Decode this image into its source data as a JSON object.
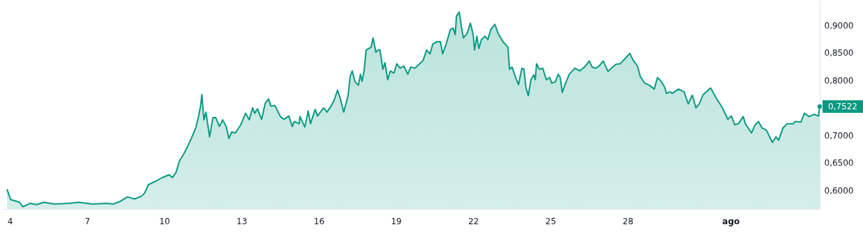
{
  "chart_data": {
    "type": "area",
    "xlim": [
      3.7,
      35.46
    ],
    "ylim": [
      0.566,
      0.946
    ],
    "xticks": [
      4,
      7,
      10,
      13,
      16,
      19,
      22,
      25,
      28,
      {
        "value": 32,
        "label": "ago"
      }
    ],
    "yticks": [
      {
        "value": 0.6,
        "label": "0,6000"
      },
      {
        "value": 0.65,
        "label": "0,6500"
      },
      {
        "value": 0.7,
        "label": "0,7000"
      },
      {
        "value": 0.8,
        "label": "0,8000"
      },
      {
        "value": 0.85,
        "label": "0,8500"
      },
      {
        "value": 0.9,
        "label": "0,9000"
      }
    ],
    "grid": false,
    "annotations": [
      {
        "text": "0,7522",
        "x": 35.46,
        "y": 0.7522
      }
    ],
    "series": [
      {
        "color": "#089981",
        "x": [
          3.89,
          4.03,
          4.38,
          4.51,
          4.78,
          5.05,
          5.32,
          5.73,
          6.27,
          6.68,
          7.22,
          7.76,
          8.03,
          8.3,
          8.57,
          8.84,
          9.11,
          9.24,
          9.38,
          9.65,
          9.92,
          10.19,
          10.32,
          10.46,
          10.59,
          10.78,
          10.95,
          11.05,
          11.22,
          11.32,
          11.41,
          11.46,
          11.54,
          11.62,
          11.76,
          11.89,
          12.0,
          12.14,
          12.27,
          12.41,
          12.51,
          12.62,
          12.76,
          12.97,
          13.16,
          13.3,
          13.43,
          13.51,
          13.62,
          13.78,
          13.92,
          14.05,
          14.14,
          14.3,
          14.51,
          14.65,
          14.84,
          14.97,
          15.05,
          15.24,
          15.27,
          15.46,
          15.59,
          15.68,
          15.86,
          15.95,
          16.19,
          16.32,
          16.49,
          16.59,
          16.73,
          16.84,
          16.97,
          17.14,
          17.22,
          17.3,
          17.41,
          17.54,
          17.62,
          17.68,
          17.76,
          17.84,
          18.03,
          18.11,
          18.22,
          18.3,
          18.38,
          18.49,
          18.57,
          18.68,
          18.78,
          18.92,
          19.03,
          19.16,
          19.3,
          19.46,
          19.57,
          19.73,
          19.92,
          20.05,
          20.19,
          20.32,
          20.43,
          20.59,
          20.73,
          20.81,
          20.95,
          21.11,
          21.22,
          21.3,
          21.35,
          21.46,
          21.54,
          21.62,
          21.76,
          21.89,
          22.0,
          22.05,
          22.14,
          22.22,
          22.32,
          22.46,
          22.57,
          22.68,
          22.84,
          22.97,
          23.16,
          23.35,
          23.41,
          23.51,
          23.65,
          23.76,
          23.89,
          23.97,
          24.05,
          24.14,
          24.24,
          24.35,
          24.41,
          24.46,
          24.57,
          24.7,
          24.84,
          24.97,
          25.05,
          25.19,
          25.3,
          25.38,
          25.46,
          25.59,
          25.73,
          25.95,
          26.14,
          26.32,
          26.51,
          26.62,
          26.76,
          26.89,
          27.05,
          27.24,
          27.41,
          27.54,
          27.7,
          27.89,
          28.08,
          28.22,
          28.38,
          28.49,
          28.65,
          28.84,
          29.03,
          29.16,
          29.3,
          29.43,
          29.51,
          29.65,
          29.73,
          29.97,
          30.19,
          30.35,
          30.51,
          30.65,
          30.78,
          30.92,
          31.22,
          31.46,
          31.68,
          31.89,
          32.03,
          32.16,
          32.3,
          32.49,
          32.57,
          32.81,
          32.95,
          33.08,
          33.22,
          33.38,
          33.62,
          33.76,
          33.86,
          34.03,
          34.19,
          34.43,
          34.51,
          34.73,
          34.86,
          35.05,
          35.24,
          35.41,
          35.46
        ],
        "values": [
          0.602,
          0.583,
          0.578,
          0.57,
          0.576,
          0.574,
          0.578,
          0.575,
          0.576,
          0.578,
          0.575,
          0.576,
          0.575,
          0.58,
          0.588,
          0.584,
          0.589,
          0.595,
          0.61,
          0.616,
          0.623,
          0.628,
          0.623,
          0.633,
          0.653,
          0.668,
          0.684,
          0.694,
          0.713,
          0.732,
          0.753,
          0.774,
          0.728,
          0.742,
          0.697,
          0.732,
          0.732,
          0.716,
          0.728,
          0.715,
          0.694,
          0.706,
          0.704,
          0.719,
          0.74,
          0.728,
          0.75,
          0.74,
          0.748,
          0.729,
          0.758,
          0.766,
          0.753,
          0.754,
          0.734,
          0.729,
          0.735,
          0.716,
          0.725,
          0.721,
          0.734,
          0.715,
          0.744,
          0.721,
          0.747,
          0.735,
          0.75,
          0.742,
          0.754,
          0.763,
          0.782,
          0.766,
          0.742,
          0.772,
          0.807,
          0.817,
          0.797,
          0.791,
          0.811,
          0.798,
          0.817,
          0.855,
          0.86,
          0.877,
          0.851,
          0.855,
          0.855,
          0.82,
          0.832,
          0.801,
          0.817,
          0.813,
          0.83,
          0.822,
          0.826,
          0.811,
          0.824,
          0.822,
          0.83,
          0.836,
          0.855,
          0.848,
          0.866,
          0.87,
          0.87,
          0.848,
          0.866,
          0.892,
          0.895,
          0.883,
          0.917,
          0.924,
          0.898,
          0.877,
          0.885,
          0.904,
          0.883,
          0.855,
          0.88,
          0.858,
          0.874,
          0.88,
          0.874,
          0.892,
          0.902,
          0.885,
          0.87,
          0.86,
          0.82,
          0.824,
          0.805,
          0.792,
          0.822,
          0.82,
          0.786,
          0.772,
          0.801,
          0.81,
          0.801,
          0.83,
          0.82,
          0.822,
          0.801,
          0.805,
          0.795,
          0.797,
          0.811,
          0.805,
          0.778,
          0.795,
          0.811,
          0.822,
          0.817,
          0.824,
          0.835,
          0.824,
          0.822,
          0.826,
          0.835,
          0.816,
          0.824,
          0.829,
          0.83,
          0.839,
          0.849,
          0.836,
          0.826,
          0.807,
          0.795,
          0.791,
          0.784,
          0.805,
          0.798,
          0.788,
          0.776,
          0.779,
          0.776,
          0.784,
          0.779,
          0.757,
          0.773,
          0.75,
          0.757,
          0.773,
          0.786,
          0.766,
          0.75,
          0.729,
          0.735,
          0.719,
          0.721,
          0.734,
          0.721,
          0.704,
          0.719,
          0.725,
          0.713,
          0.71,
          0.687,
          0.697,
          0.691,
          0.713,
          0.721,
          0.721,
          0.725,
          0.724,
          0.74,
          0.734,
          0.738,
          0.735,
          0.7522
        ]
      }
    ]
  }
}
